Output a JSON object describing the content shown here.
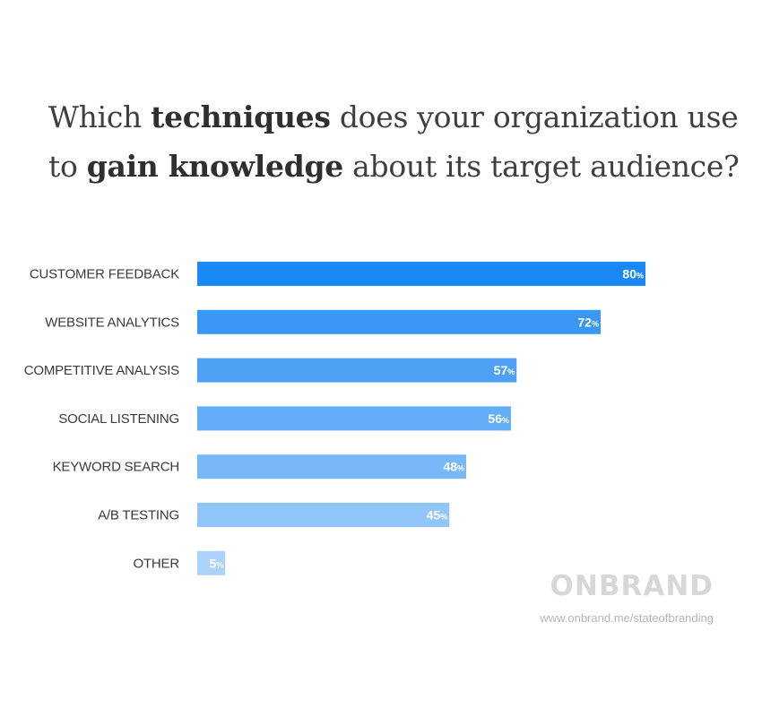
{
  "title": {
    "parts": [
      {
        "text": "Which ",
        "bold": false
      },
      {
        "text": "techniques",
        "bold": true
      },
      {
        "text": " does your organization use to ",
        "bold": false
      },
      {
        "text": "gain knowledge",
        "bold": true
      },
      {
        "text": " about its target audience?",
        "bold": false
      }
    ]
  },
  "chart_data": {
    "type": "bar",
    "orientation": "horizontal",
    "categories": [
      "CUSTOMER FEEDBACK",
      "WEBSITE ANALYTICS",
      "COMPETITIVE ANALYSIS",
      "SOCIAL LISTENING",
      "KEYWORD SEARCH",
      "A/B TESTING",
      "OTHER"
    ],
    "values": [
      80,
      72,
      57,
      56,
      48,
      45,
      5
    ],
    "value_suffix": "%",
    "colors": [
      "#1a88f5",
      "#3a97f6",
      "#4ea1f7",
      "#62acf8",
      "#78b8f9",
      "#91c6fa",
      "#a9d3fb"
    ],
    "title": "",
    "xlabel": "",
    "ylabel": "",
    "xlim": [
      0,
      100
    ],
    "grid": false,
    "legend": "none"
  },
  "logo": {
    "text": "ONBRAND"
  },
  "source": {
    "text": "www.onbrand.me/stateofbranding"
  }
}
